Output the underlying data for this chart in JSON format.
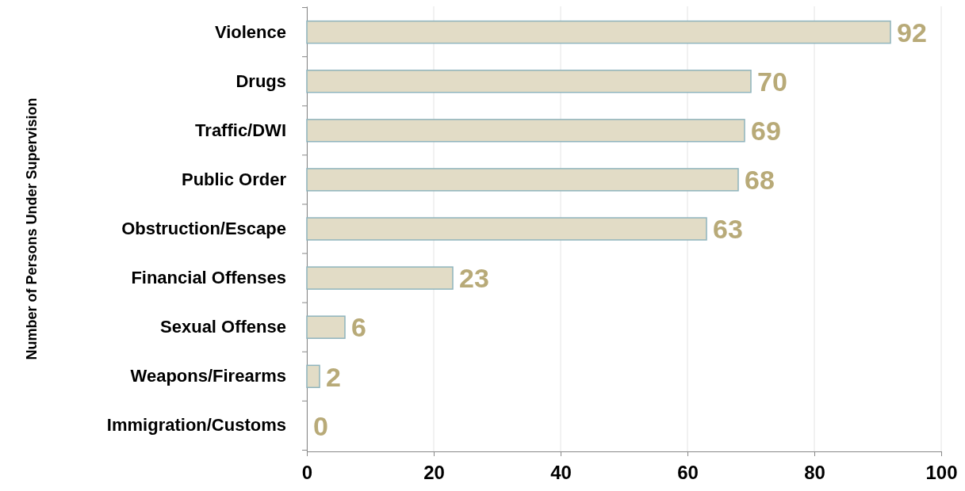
{
  "chart_data": {
    "type": "bar",
    "orientation": "horizontal",
    "ylabel": "Number of Persons Under Supervision",
    "categories": [
      "Violence",
      "Drugs",
      "Traffic/DWI",
      "Public Order",
      "Obstruction/Escape",
      "Financial Offenses",
      "Sexual Offense",
      "Weapons/Firearms",
      "Immigration/Customs"
    ],
    "values": [
      92,
      70,
      69,
      68,
      63,
      23,
      6,
      2,
      0
    ],
    "color": "#e2dcc6",
    "xlim": [
      0,
      100
    ],
    "xticks": [
      0,
      20,
      40,
      60,
      80,
      100
    ],
    "grid": "x",
    "data_labels": true
  }
}
